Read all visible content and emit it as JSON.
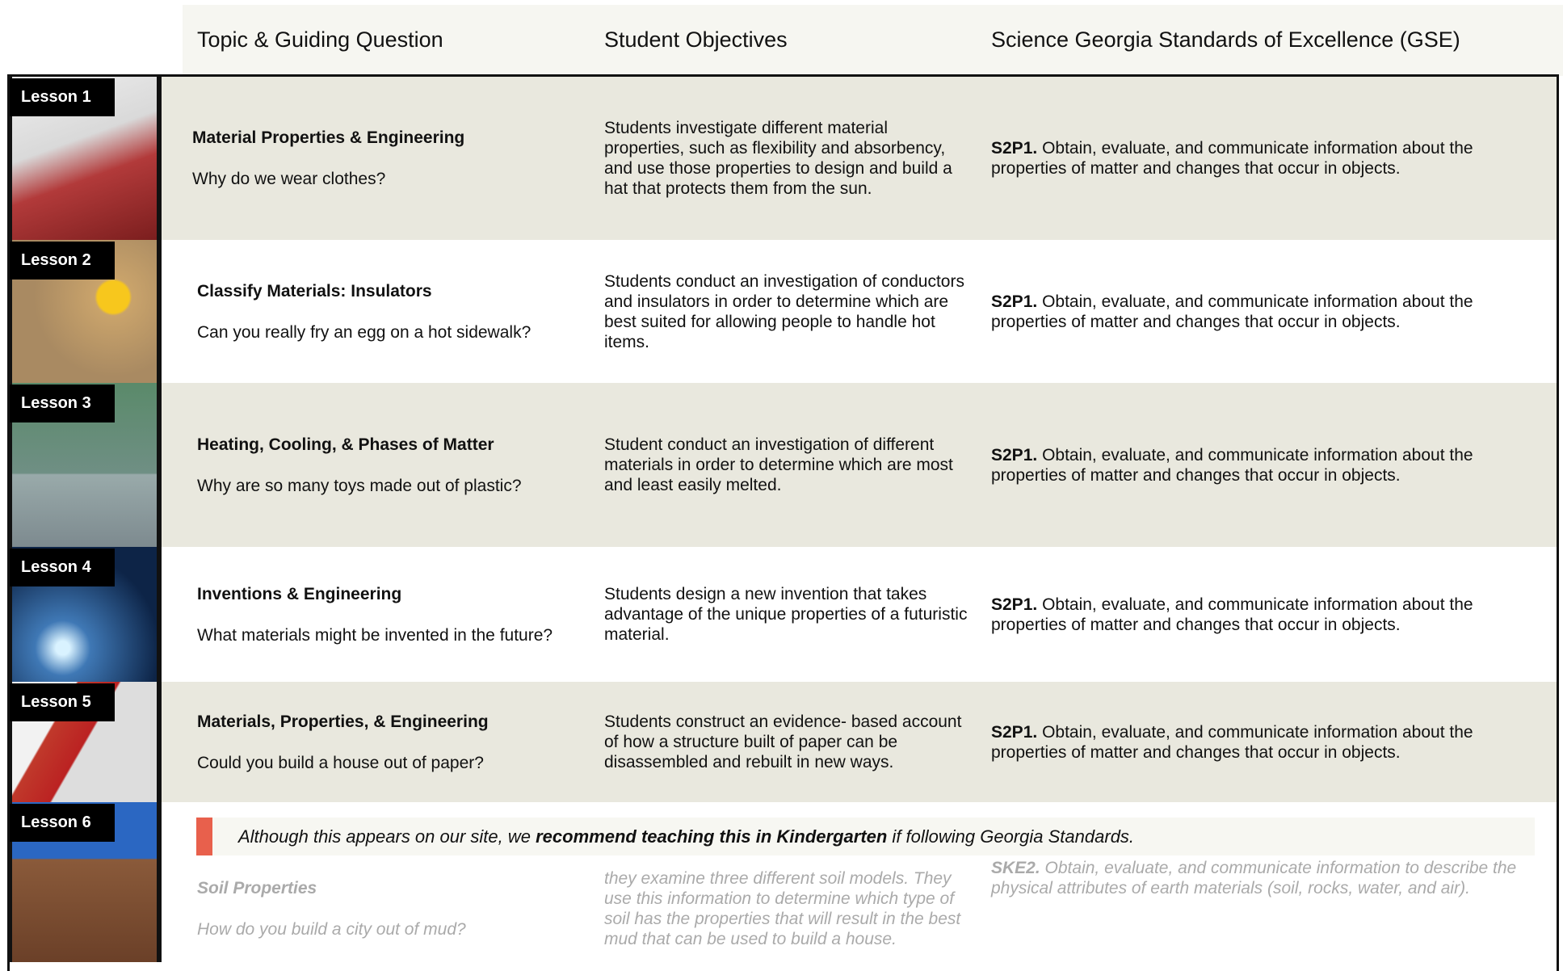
{
  "header": {
    "columns": [
      "Topic & Guiding Question",
      "Student Objectives",
      "Science Georgia Standards of Excellence (GSE)"
    ]
  },
  "lessons": [
    {
      "label": "Lesson 1",
      "topic": "Material Properties & Engineering",
      "question": "Why do we wear clothes?",
      "objectives": "Students investigate different material properties, such as flexibility and absorbency, and use those properties to design and build a hat that protects them from the sun.",
      "standard_code": "S2P1.",
      "standard_text": "Obtain, evaluate, and communicate information about the properties of matter and changes that occur in objects."
    },
    {
      "label": "Lesson 2",
      "topic": "Classify Materials: Insulators",
      "question": "Can you really fry an egg on a hot sidewalk?",
      "objectives": "Students conduct an investigation of conductors and insulators in order to determine which are best suited for allowing people to handle hot items.",
      "standard_code": "S2P1.",
      "standard_text": "Obtain, evaluate, and communicate information about the properties of matter and changes that occur in objects."
    },
    {
      "label": "Lesson 3",
      "topic": "Heating, Cooling, & Phases of Matter",
      "question": "Why are so many toys made out of plastic?",
      "objectives": "Student conduct an investigation of different materials in order to determine which are most and least easily melted.",
      "standard_code": "S2P1.",
      "standard_text": "Obtain, evaluate, and communicate information about the properties of matter and changes that occur in objects."
    },
    {
      "label": "Lesson 4",
      "topic": "Inventions & Engineering",
      "question": "What materials might be invented in the future?",
      "objectives": "Students design a new invention that takes advantage of the unique properties of a futuristic material.",
      "standard_code": "S2P1.",
      "standard_text": "Obtain, evaluate, and communicate information about the properties of matter and changes that occur in objects."
    },
    {
      "label": "Lesson 5",
      "topic": "Materials, Properties, & Engineering",
      "question": "Could you build a house out of paper?",
      "objectives": "Students construct an evidence- based account of how a structure built of paper can be disassembled and rebuilt in new ways.",
      "standard_code": "S2P1.",
      "standard_text": "Obtain, evaluate, and communicate information about the properties of matter and changes that occur in objects."
    },
    {
      "label": "Lesson 6",
      "topic": "Soil Properties",
      "question": "How do you build a city out of mud?",
      "objectives": "they examine three different soil models. They use this information to determine which type of soil has the properties that will result in the best mud that can be used to build a house.",
      "standard_code": "SKE2.",
      "standard_text": "Obtain, evaluate, and communicate information to describe the physical attributes of earth materials (soil, rocks, water, and air)."
    }
  ],
  "notice": {
    "before": "Although this appears on our site, we ",
    "bold": "recommend teaching this in Kindergarten",
    "after": " if following Georgia Standards."
  }
}
